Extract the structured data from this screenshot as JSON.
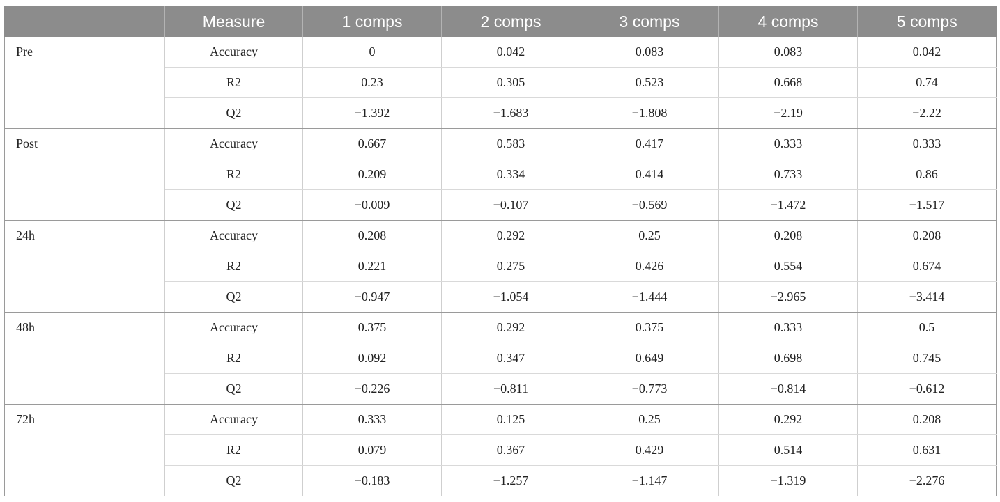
{
  "table": {
    "headers": [
      "",
      "Measure",
      "1 comps",
      "2 comps",
      "3 comps",
      "4 comps",
      "5 comps"
    ],
    "groups": [
      {
        "label": "Pre",
        "rows": [
          {
            "measure": "Accuracy",
            "values": [
              "0",
              "0.042",
              "0.083",
              "0.083",
              "0.042"
            ]
          },
          {
            "measure": "R2",
            "values": [
              "0.23",
              "0.305",
              "0.523",
              "0.668",
              "0.74"
            ]
          },
          {
            "measure": "Q2",
            "values": [
              "−1.392",
              "−1.683",
              "−1.808",
              "−2.19",
              "−2.22"
            ]
          }
        ]
      },
      {
        "label": "Post",
        "rows": [
          {
            "measure": "Accuracy",
            "values": [
              "0.667",
              "0.583",
              "0.417",
              "0.333",
              "0.333"
            ]
          },
          {
            "measure": "R2",
            "values": [
              "0.209",
              "0.334",
              "0.414",
              "0.733",
              "0.86"
            ]
          },
          {
            "measure": "Q2",
            "values": [
              "−0.009",
              "−0.107",
              "−0.569",
              "−1.472",
              "−1.517"
            ]
          }
        ]
      },
      {
        "label": "24h",
        "rows": [
          {
            "measure": "Accuracy",
            "values": [
              "0.208",
              "0.292",
              "0.25",
              "0.208",
              "0.208"
            ]
          },
          {
            "measure": "R2",
            "values": [
              "0.221",
              "0.275",
              "0.426",
              "0.554",
              "0.674"
            ]
          },
          {
            "measure": "Q2",
            "values": [
              "−0.947",
              "−1.054",
              "−1.444",
              "−2.965",
              "−3.414"
            ]
          }
        ]
      },
      {
        "label": "48h",
        "rows": [
          {
            "measure": "Accuracy",
            "values": [
              "0.375",
              "0.292",
              "0.375",
              "0.333",
              "0.5"
            ]
          },
          {
            "measure": "R2",
            "values": [
              "0.092",
              "0.347",
              "0.649",
              "0.698",
              "0.745"
            ]
          },
          {
            "measure": "Q2",
            "values": [
              "−0.226",
              "−0.811",
              "−0.773",
              "−0.814",
              "−0.612"
            ]
          }
        ]
      },
      {
        "label": "72h",
        "rows": [
          {
            "measure": "Accuracy",
            "values": [
              "0.333",
              "0.125",
              "0.25",
              "0.292",
              "0.208"
            ]
          },
          {
            "measure": "R2",
            "values": [
              "0.079",
              "0.367",
              "0.429",
              "0.514",
              "0.631"
            ]
          },
          {
            "measure": "Q2",
            "values": [
              "−0.183",
              "−1.257",
              "−1.147",
              "−1.319",
              "−2.276"
            ]
          }
        ]
      }
    ]
  },
  "colors": {
    "header_bg": "#8c8c8c",
    "header_text": "#ffffff"
  }
}
